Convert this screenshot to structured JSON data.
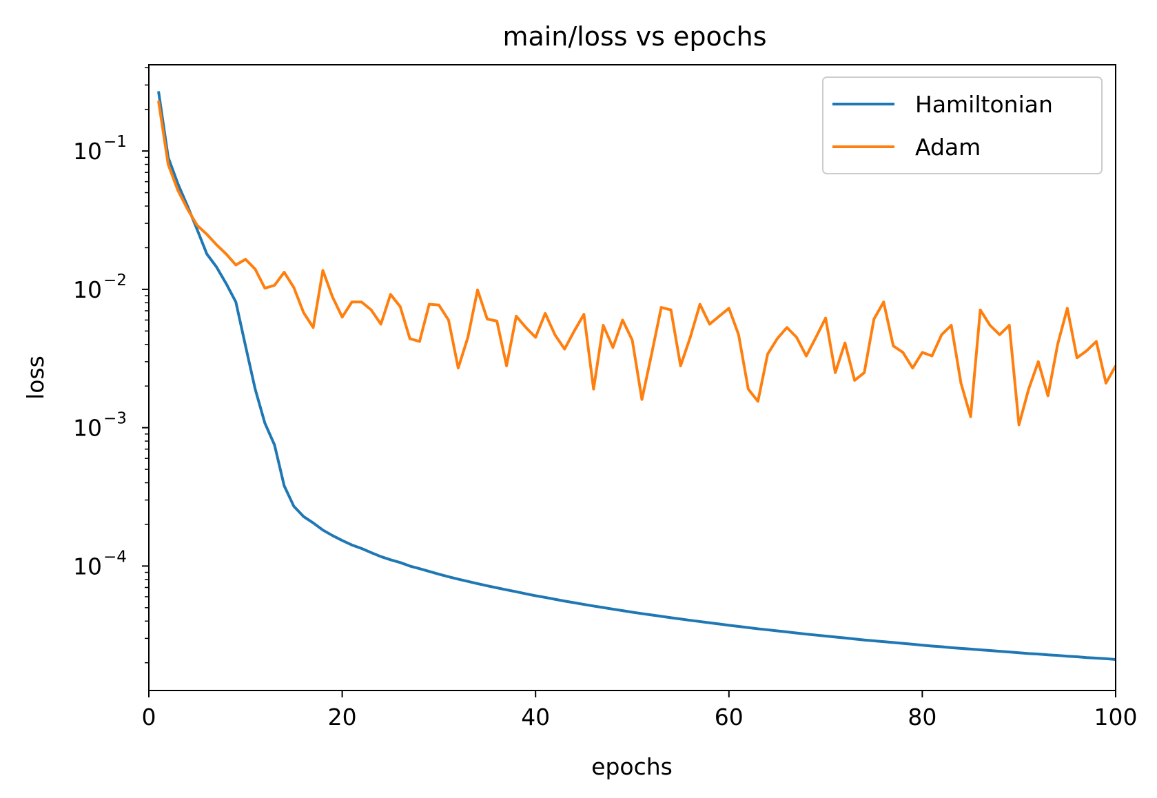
{
  "colors": {
    "hamiltonian": "#1f77b4",
    "adam": "#ff7f0e",
    "axis": "#000000",
    "legend_border": "#cccccc"
  },
  "chart_data": {
    "type": "line",
    "title": "main/loss vs epochs",
    "xlabel": "epochs",
    "ylabel": "loss",
    "xlim": [
      0,
      100
    ],
    "ylim": [
      1.26e-05,
      0.42
    ],
    "yscale": "log",
    "grid": false,
    "legend_placement": "top-right",
    "x_ticks": [
      {
        "value": 0,
        "label": "0"
      },
      {
        "value": 20,
        "label": "20"
      },
      {
        "value": 40,
        "label": "40"
      },
      {
        "value": 60,
        "label": "60"
      },
      {
        "value": 80,
        "label": "80"
      },
      {
        "value": 100,
        "label": "100"
      }
    ],
    "y_ticks": [
      {
        "value": 0.1,
        "base": "10",
        "exp": "−1"
      },
      {
        "value": 0.01,
        "base": "10",
        "exp": "−2"
      },
      {
        "value": 0.001,
        "base": "10",
        "exp": "−3"
      },
      {
        "value": 0.0001,
        "base": "10",
        "exp": "−4"
      }
    ],
    "x": [
      1,
      2,
      3,
      4,
      5,
      6,
      7,
      8,
      9,
      10,
      11,
      12,
      13,
      14,
      15,
      16,
      17,
      18,
      19,
      20,
      21,
      22,
      23,
      24,
      25,
      26,
      27,
      28,
      29,
      30,
      31,
      32,
      33,
      34,
      35,
      36,
      37,
      38,
      39,
      40,
      41,
      42,
      43,
      44,
      45,
      46,
      47,
      48,
      49,
      50,
      51,
      52,
      53,
      54,
      55,
      56,
      57,
      58,
      59,
      60,
      61,
      62,
      63,
      64,
      65,
      66,
      67,
      68,
      69,
      70,
      71,
      72,
      73,
      74,
      75,
      76,
      77,
      78,
      79,
      80,
      81,
      82,
      83,
      84,
      85,
      86,
      87,
      88,
      89,
      90,
      91,
      92,
      93,
      94,
      95,
      96,
      97,
      98,
      99,
      100
    ],
    "series": [
      {
        "name": "Hamiltonian",
        "values": [
          0.27,
          0.09,
          0.058,
          0.04,
          0.027,
          0.018,
          0.0145,
          0.011,
          0.0081,
          0.0039,
          0.0019,
          0.00108,
          0.00075,
          0.00038,
          0.00027,
          0.000228,
          0.000205,
          0.000182,
          0.000166,
          0.000153,
          0.000142,
          0.000134,
          0.000125,
          0.000117,
          0.000111,
          0.000106,
          0.0001,
          9.57e-05,
          9.14e-05,
          8.73e-05,
          8.37e-05,
          8.04e-05,
          7.74e-05,
          7.46e-05,
          7.2e-05,
          6.96e-05,
          6.73e-05,
          6.52e-05,
          6.3e-05,
          6.1e-05,
          5.93e-05,
          5.75e-05,
          5.58e-05,
          5.43e-05,
          5.28e-05,
          5.14e-05,
          5.01e-05,
          4.88e-05,
          4.76e-05,
          4.64e-05,
          4.53e-05,
          4.43e-05,
          4.33e-05,
          4.23e-05,
          4.14e-05,
          4.05e-05,
          3.97e-05,
          3.89e-05,
          3.81e-05,
          3.73e-05,
          3.66e-05,
          3.59e-05,
          3.52e-05,
          3.46e-05,
          3.4e-05,
          3.34e-05,
          3.28e-05,
          3.22e-05,
          3.17e-05,
          3.12e-05,
          3.07e-05,
          3.02e-05,
          2.97e-05,
          2.92e-05,
          2.88e-05,
          2.84e-05,
          2.8e-05,
          2.76e-05,
          2.72e-05,
          2.68e-05,
          2.64e-05,
          2.61e-05,
          2.57e-05,
          2.54e-05,
          2.51e-05,
          2.48e-05,
          2.45e-05,
          2.42e-05,
          2.39e-05,
          2.36e-05,
          2.33e-05,
          2.31e-05,
          2.28e-05,
          2.26e-05,
          2.23e-05,
          2.21e-05,
          2.18e-05,
          2.16e-05,
          2.14e-05,
          2.11e-05
        ]
      },
      {
        "name": "Adam",
        "values": [
          0.23,
          0.08,
          0.052,
          0.038,
          0.029,
          0.025,
          0.021,
          0.018,
          0.015,
          0.0165,
          0.014,
          0.0102,
          0.0107,
          0.0133,
          0.0103,
          0.0068,
          0.0053,
          0.0137,
          0.0088,
          0.0063,
          0.0081,
          0.0081,
          0.0071,
          0.0056,
          0.0092,
          0.0075,
          0.0044,
          0.0042,
          0.0078,
          0.0077,
          0.006,
          0.0027,
          0.0045,
          0.0099,
          0.0061,
          0.0059,
          0.0028,
          0.0064,
          0.0053,
          0.0045,
          0.0067,
          0.0047,
          0.0037,
          0.005,
          0.0066,
          0.0019,
          0.0055,
          0.0038,
          0.006,
          0.0043,
          0.0016,
          0.0034,
          0.0074,
          0.0071,
          0.0028,
          0.0045,
          0.0078,
          0.0056,
          0.0064,
          0.0073,
          0.0047,
          0.0019,
          0.00155,
          0.0034,
          0.0044,
          0.0053,
          0.0045,
          0.0033,
          0.0045,
          0.0062,
          0.0025,
          0.0041,
          0.0022,
          0.0025,
          0.0061,
          0.0081,
          0.0039,
          0.0035,
          0.0027,
          0.0035,
          0.0033,
          0.0047,
          0.0055,
          0.0021,
          0.0012,
          0.0071,
          0.0055,
          0.0047,
          0.0055,
          0.00105,
          0.0019,
          0.003,
          0.0017,
          0.004,
          0.0073,
          0.0032,
          0.0036,
          0.0042,
          0.0021,
          0.0028
        ]
      }
    ]
  }
}
